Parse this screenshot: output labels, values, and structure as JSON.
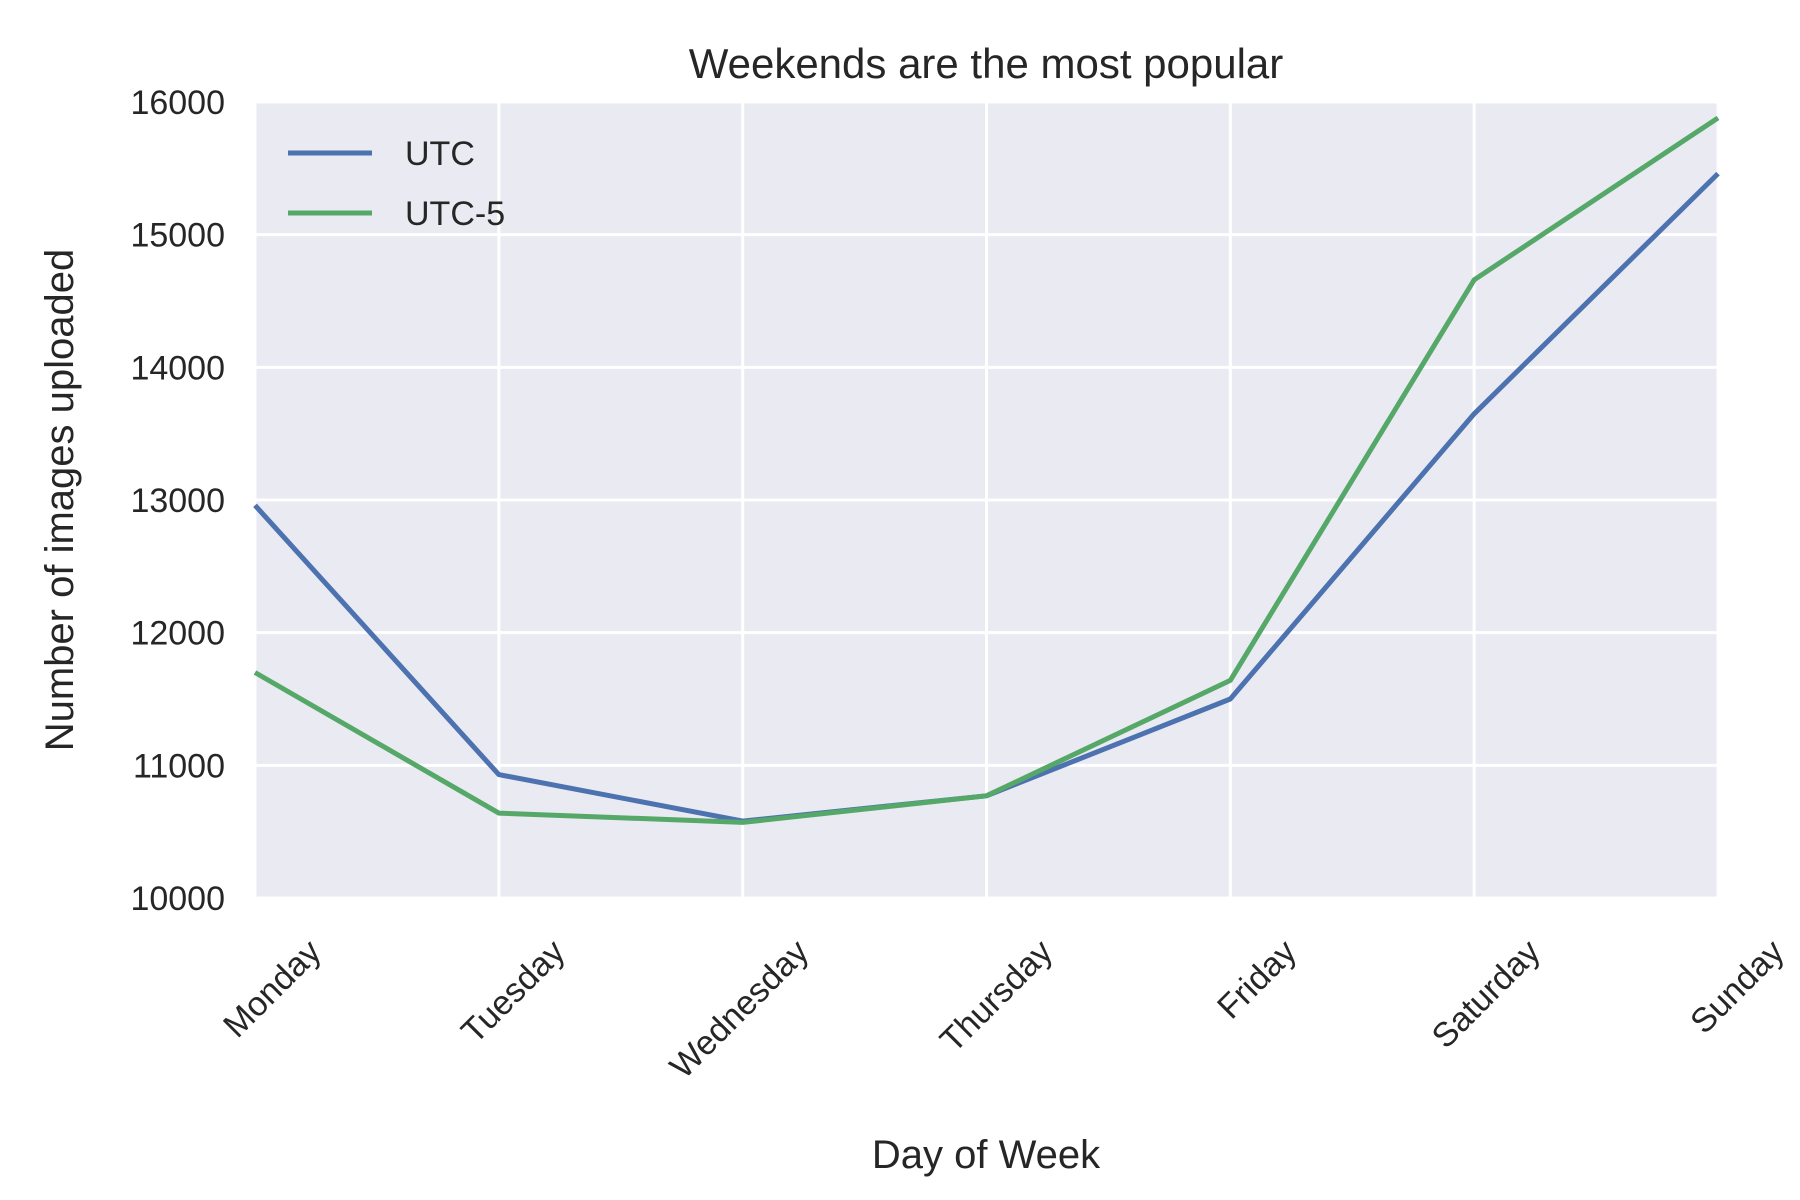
{
  "chart_data": {
    "type": "line",
    "title": "Weekends are the most popular",
    "xlabel": "Day of Week",
    "ylabel": "Number of images uploaded",
    "categories": [
      "Monday",
      "Tuesday",
      "Wednesday",
      "Thursday",
      "Friday",
      "Saturday",
      "Sunday"
    ],
    "ylim": [
      10000,
      16000
    ],
    "yticks": [
      10000,
      11000,
      12000,
      13000,
      14000,
      15000,
      16000
    ],
    "grid": true,
    "legend_position": "top-left",
    "background": "#EAEAF2",
    "series": [
      {
        "name": "UTC",
        "color": "#4C72B0",
        "values": [
          12960,
          10930,
          10580,
          10770,
          11500,
          13650,
          15460
        ]
      },
      {
        "name": "UTC-5",
        "color": "#55A868",
        "values": [
          11700,
          10640,
          10570,
          10770,
          11640,
          14660,
          15880
        ]
      }
    ]
  }
}
